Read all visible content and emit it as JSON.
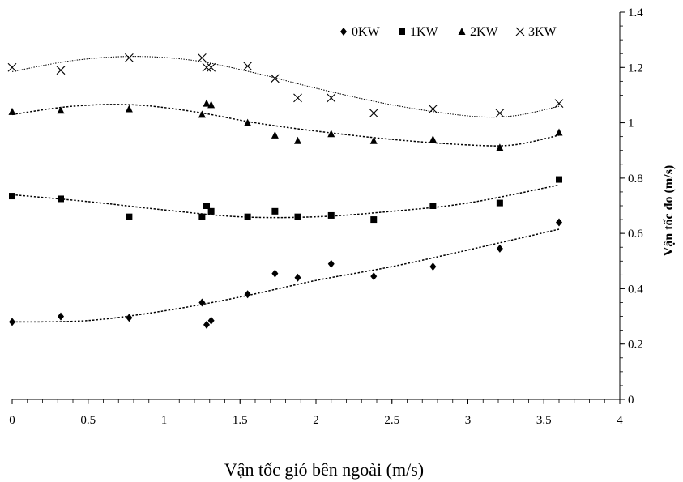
{
  "chart_data": {
    "type": "scatter",
    "title": "",
    "xlabel": "Vận tốc gió bên ngoài (m/s)",
    "ylabel": "Vận tốc đo (m/s)",
    "xlim": [
      0,
      4
    ],
    "ylim": [
      0,
      1.4
    ],
    "x_ticks": [
      "0",
      "0.5",
      "1",
      "1.5",
      "2",
      "2.5",
      "3",
      "3.5",
      "4"
    ],
    "y_ticks": [
      "0",
      "0.2",
      "0.4",
      "0.6",
      "0.8",
      "1",
      "1.2",
      "1.4"
    ],
    "y_axis_side": "right",
    "legend_position": "top-right",
    "grid": false,
    "x": [
      0,
      0.32,
      0.77,
      1.25,
      1.28,
      1.31,
      1.55,
      1.73,
      1.88,
      2.1,
      2.38,
      2.77,
      3.21,
      3.6
    ],
    "series": [
      {
        "name": "0KW",
        "marker": "diamond",
        "points": [
          [
            0,
            0.28
          ],
          [
            0.32,
            0.3
          ],
          [
            0.77,
            0.295
          ],
          [
            1.25,
            0.35
          ],
          [
            1.28,
            0.27
          ],
          [
            1.31,
            0.285
          ],
          [
            1.55,
            0.38
          ],
          [
            1.73,
            0.455
          ],
          [
            1.88,
            0.44
          ],
          [
            2.1,
            0.49
          ],
          [
            2.38,
            0.445
          ],
          [
            2.77,
            0.48
          ],
          [
            3.21,
            0.545
          ],
          [
            3.6,
            0.64
          ]
        ],
        "trend": [
          [
            0,
            0.28
          ],
          [
            0.5,
            0.285
          ],
          [
            1,
            0.32
          ],
          [
            1.5,
            0.37
          ],
          [
            2,
            0.43
          ],
          [
            2.5,
            0.48
          ],
          [
            3,
            0.54
          ],
          [
            3.6,
            0.615
          ]
        ]
      },
      {
        "name": "1KW",
        "marker": "square",
        "points": [
          [
            0,
            0.735
          ],
          [
            0.32,
            0.725
          ],
          [
            0.77,
            0.66
          ],
          [
            1.25,
            0.66
          ],
          [
            1.28,
            0.7
          ],
          [
            1.31,
            0.68
          ],
          [
            1.55,
            0.66
          ],
          [
            1.73,
            0.68
          ],
          [
            1.88,
            0.66
          ],
          [
            2.1,
            0.665
          ],
          [
            2.38,
            0.65
          ],
          [
            2.77,
            0.7
          ],
          [
            3.21,
            0.71
          ],
          [
            3.6,
            0.795
          ]
        ],
        "trend": [
          [
            0,
            0.74
          ],
          [
            0.5,
            0.715
          ],
          [
            1,
            0.685
          ],
          [
            1.5,
            0.66
          ],
          [
            2,
            0.66
          ],
          [
            2.5,
            0.68
          ],
          [
            3,
            0.71
          ],
          [
            3.6,
            0.775
          ]
        ]
      },
      {
        "name": "2KW",
        "marker": "triangle",
        "points": [
          [
            0,
            1.04
          ],
          [
            0.32,
            1.045
          ],
          [
            0.77,
            1.05
          ],
          [
            1.25,
            1.03
          ],
          [
            1.28,
            1.07
          ],
          [
            1.31,
            1.065
          ],
          [
            1.55,
            1.0
          ],
          [
            1.73,
            0.955
          ],
          [
            1.88,
            0.935
          ],
          [
            2.1,
            0.96
          ],
          [
            2.38,
            0.935
          ],
          [
            2.77,
            0.94
          ],
          [
            3.21,
            0.91
          ],
          [
            3.6,
            0.965
          ]
        ],
        "trend": [
          [
            0,
            1.03
          ],
          [
            0.4,
            1.06
          ],
          [
            0.8,
            1.065
          ],
          [
            1.2,
            1.04
          ],
          [
            1.6,
            1.0
          ],
          [
            2,
            0.97
          ],
          [
            2.5,
            0.94
          ],
          [
            3,
            0.92
          ],
          [
            3.3,
            0.92
          ],
          [
            3.6,
            0.955
          ]
        ]
      },
      {
        "name": "3KW",
        "marker": "x",
        "points": [
          [
            0,
            1.2
          ],
          [
            0.32,
            1.19
          ],
          [
            0.77,
            1.235
          ],
          [
            1.25,
            1.235
          ],
          [
            1.28,
            1.2
          ],
          [
            1.31,
            1.2
          ],
          [
            1.55,
            1.205
          ],
          [
            1.73,
            1.16
          ],
          [
            1.88,
            1.09
          ],
          [
            2.1,
            1.09
          ],
          [
            2.38,
            1.035
          ],
          [
            2.77,
            1.05
          ],
          [
            3.21,
            1.035
          ],
          [
            3.6,
            1.07
          ]
        ],
        "trend": [
          [
            0,
            1.185
          ],
          [
            0.4,
            1.225
          ],
          [
            0.8,
            1.24
          ],
          [
            1.2,
            1.225
          ],
          [
            1.6,
            1.18
          ],
          [
            2,
            1.125
          ],
          [
            2.5,
            1.065
          ],
          [
            3,
            1.025
          ],
          [
            3.3,
            1.025
          ],
          [
            3.6,
            1.06
          ]
        ]
      }
    ]
  }
}
